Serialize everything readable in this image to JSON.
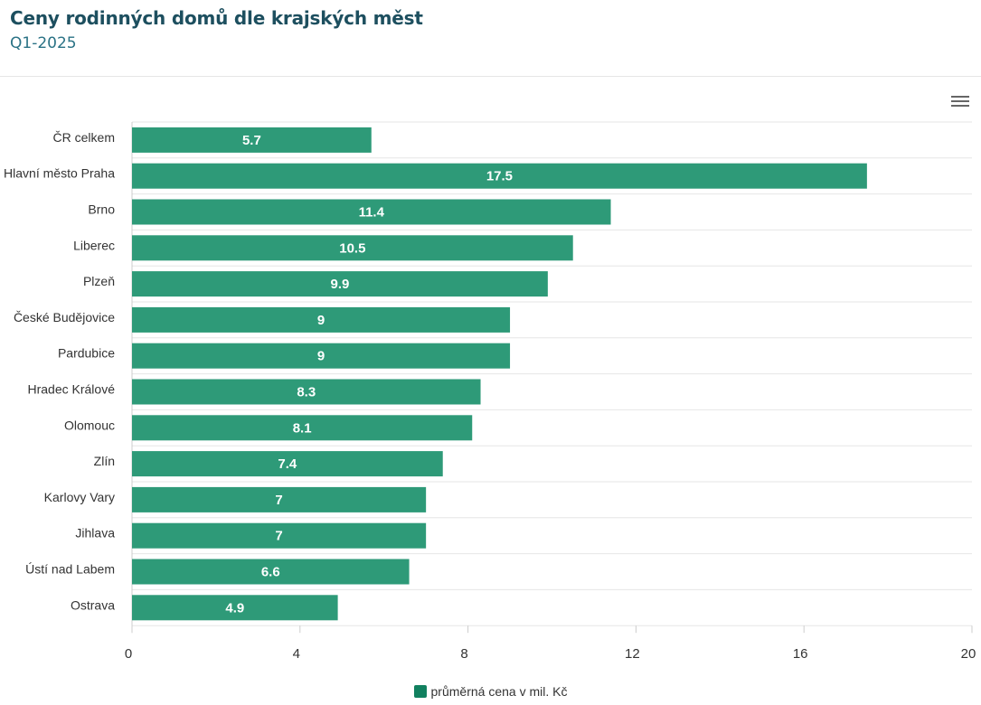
{
  "header": {
    "title": "Ceny rodinných domů dle krajských měst",
    "subtitle": "Q1-2025"
  },
  "menu": {
    "icon": "hamburger-menu-icon"
  },
  "colors": {
    "bar": "#2e9a78",
    "legend": "#11805f",
    "title": "#1d4f5f",
    "subtitle": "#2a7285",
    "grid": "#e6e6e6"
  },
  "chart_data": {
    "type": "bar",
    "orientation": "horizontal",
    "categories": [
      "ČR celkem",
      "Hlavní město Praha",
      "Brno",
      "Liberec",
      "Plzeň",
      "České Budějovice",
      "Pardubice",
      "Hradec Králové",
      "Olomouc",
      "Zlín",
      "Karlovy Vary",
      "Jihlava",
      "Ústí nad Labem",
      "Ostrava"
    ],
    "series": [
      {
        "name": "průměrná cena v mil. Kč",
        "values": [
          5.7,
          17.5,
          11.4,
          10.5,
          9.9,
          9,
          9,
          8.3,
          8.1,
          7.4,
          7,
          7,
          6.6,
          4.9
        ]
      }
    ],
    "xlim": [
      0,
      20
    ],
    "ticks": [
      "0",
      "4",
      "8",
      "12",
      "16",
      "20"
    ],
    "grid": true,
    "data_labels": true,
    "legend_position": "bottom-center"
  }
}
